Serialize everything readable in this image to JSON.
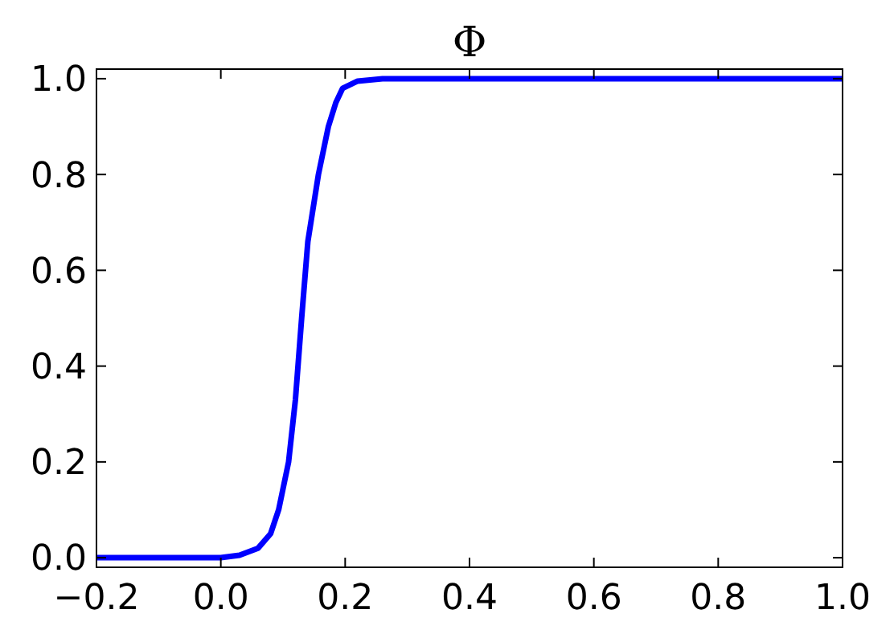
{
  "chart_data": {
    "type": "line",
    "title": "Φ",
    "x": [
      -0.2,
      0.0,
      0.03,
      0.06,
      0.08,
      0.093,
      0.109,
      0.12,
      0.13,
      0.14,
      0.157,
      0.173,
      0.185,
      0.196,
      0.22,
      0.26,
      1.0
    ],
    "series": [
      {
        "color": "#0000ff",
        "values": [
          0,
          0,
          0.005,
          0.02,
          0.05,
          0.1,
          0.2,
          0.33,
          0.5,
          0.66,
          0.8,
          0.9,
          0.95,
          0.98,
          0.995,
          1.0,
          1.0
        ]
      }
    ],
    "xlim": [
      -0.2,
      1.0
    ],
    "xticks": [
      {
        "value": -0.2,
        "label": "−0.2"
      },
      {
        "value": 0,
        "label": "0.0"
      },
      {
        "value": 0.2,
        "label": "0.2"
      },
      {
        "value": 0.4,
        "label": "0.4"
      },
      {
        "value": 0.6,
        "label": "0.6"
      },
      {
        "value": 0.8,
        "label": "0.8"
      },
      {
        "value": 1,
        "label": "1.0"
      }
    ],
    "ylim": [
      -0.02,
      1.02
    ],
    "yticks": [
      {
        "value": 0,
        "label": "0.0"
      },
      {
        "value": 0.2,
        "label": "0.2"
      },
      {
        "value": 0.4,
        "label": "0.4"
      },
      {
        "value": 0.6,
        "label": "0.6"
      },
      {
        "value": 0.8,
        "label": "0.8"
      },
      {
        "value": 1,
        "label": "1.0"
      }
    ],
    "marker": "none",
    "line_style": "solid",
    "grid": false
  }
}
